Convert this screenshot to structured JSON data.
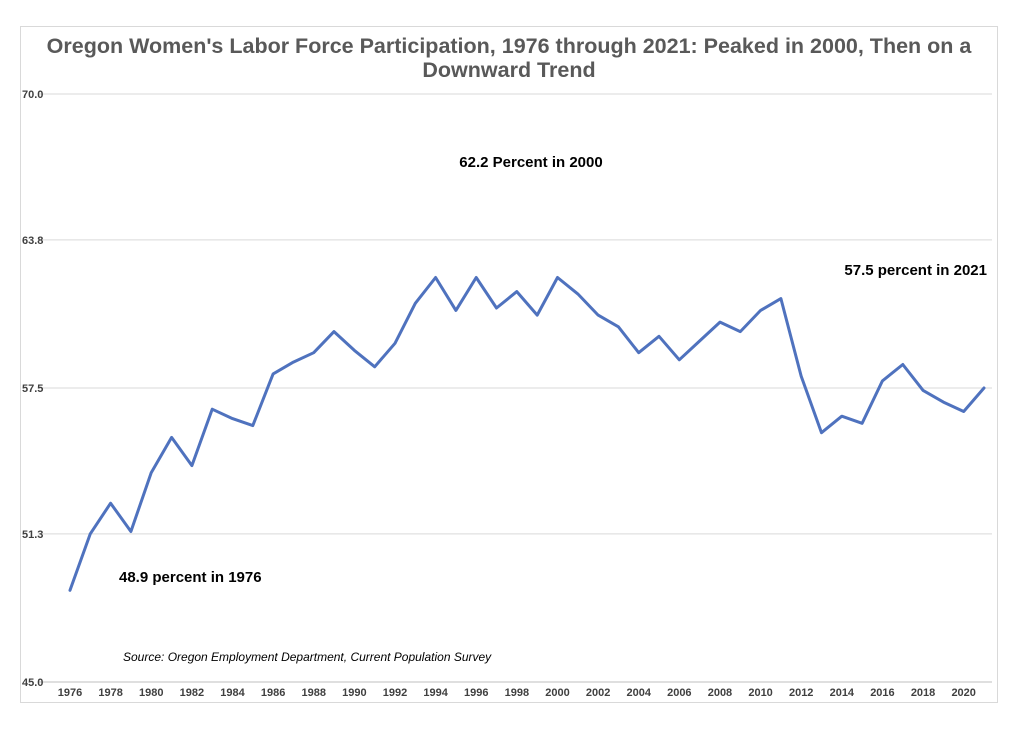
{
  "chart_data": {
    "type": "line",
    "title": "Oregon Women's Labor Force Participation, 1976 through 2021: Peaked in 2000, Then on a Downward Trend",
    "xlabel": "",
    "ylabel": "",
    "ylim": [
      45.0,
      70.0
    ],
    "yticks": [
      "70.0",
      "63.8",
      "57.5",
      "51.3",
      "45.0"
    ],
    "ytick_values": [
      70.0,
      63.8,
      57.5,
      51.3,
      45.0
    ],
    "xticks": [
      "1976",
      "1978",
      "1980",
      "1982",
      "1984",
      "1986",
      "1988",
      "1990",
      "1992",
      "1994",
      "1996",
      "1998",
      "2000",
      "2002",
      "2004",
      "2006",
      "2008",
      "2010",
      "2012",
      "2014",
      "2016",
      "2018",
      "2020"
    ],
    "grid": true,
    "color": "#4f72be",
    "x": [
      1976,
      1977,
      1978,
      1979,
      1980,
      1981,
      1982,
      1983,
      1984,
      1985,
      1986,
      1987,
      1988,
      1989,
      1990,
      1991,
      1992,
      1993,
      1994,
      1995,
      1996,
      1997,
      1998,
      1999,
      2000,
      2001,
      2002,
      2003,
      2004,
      2005,
      2006,
      2007,
      2008,
      2009,
      2010,
      2011,
      2012,
      2013,
      2014,
      2015,
      2016,
      2017,
      2018,
      2019,
      2020,
      2021
    ],
    "series": [
      {
        "values": [
          48.9,
          51.3,
          52.6,
          51.4,
          53.9,
          55.4,
          54.2,
          56.6,
          56.2,
          55.9,
          58.1,
          58.6,
          59.0,
          59.9,
          59.1,
          58.4,
          59.4,
          61.1,
          62.2,
          60.8,
          62.2,
          60.9,
          61.6,
          60.6,
          62.2,
          61.5,
          60.6,
          60.1,
          59.0,
          59.7,
          58.7,
          59.5,
          60.3,
          59.9,
          60.8,
          61.3,
          58.0,
          55.6,
          56.3,
          56.0,
          57.8,
          58.5,
          57.4,
          56.9,
          56.5,
          57.5
        ]
      }
    ],
    "annotations": [
      "62.2 Percent in 2000",
      "57.5 percent in 2021",
      "48.9 percent in 1976"
    ],
    "source": "Source:  Oregon Employment Department, Current Population Survey"
  }
}
